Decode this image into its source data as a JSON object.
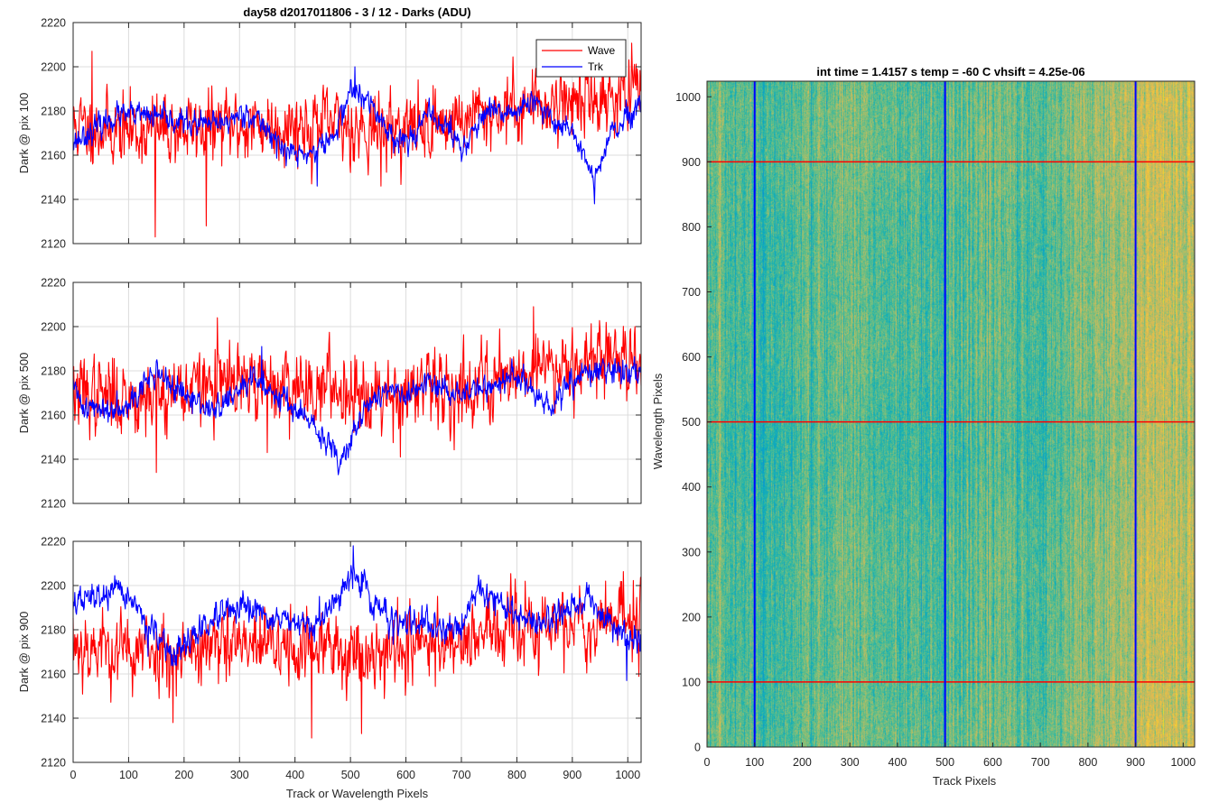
{
  "colors": {
    "wave": "#ff0000",
    "trk": "#0000ff",
    "grid": "#dcdcdc",
    "axis": "#262626"
  },
  "chart_data": [
    {
      "type": "line",
      "title": "day58 d2017011806 - 3 / 12 - Darks (ADU)",
      "ylabel": "Dark @ pix 100",
      "xlabel": "",
      "xlim": [
        0,
        1024
      ],
      "ylim": [
        2120,
        2220
      ],
      "xticks": [
        0,
        100,
        200,
        300,
        400,
        500,
        600,
        700,
        800,
        900,
        1000
      ],
      "yticks": [
        2120,
        2140,
        2160,
        2180,
        2200,
        2220
      ],
      "show_xtick_labels": false,
      "grid": true,
      "legend": {
        "placement": "top-right",
        "entries": [
          "Wave",
          "Trk"
        ]
      },
      "series": [
        {
          "name": "Wave",
          "color": "#ff0000",
          "noise": 7.5,
          "seed": 11,
          "trend": [
            [
              0,
              2173
            ],
            [
              100,
              2171
            ],
            [
              200,
              2172
            ],
            [
              300,
              2173
            ],
            [
              400,
              2174
            ],
            [
              500,
              2173
            ],
            [
              600,
              2172
            ],
            [
              700,
              2176
            ],
            [
              800,
              2182
            ],
            [
              900,
              2185
            ],
            [
              1024,
              2188
            ]
          ],
          "spikes": [
            [
              34,
              2207
            ],
            [
              148,
              2123
            ],
            [
              240,
              2128
            ],
            [
              430,
              2147
            ],
            [
              555,
              2146
            ],
            [
              940,
              2195
            ]
          ]
        },
        {
          "name": "Trk",
          "color": "#0000ff",
          "noise": 2.6,
          "seed": 23,
          "trend": [
            [
              0,
              2166
            ],
            [
              40,
              2172
            ],
            [
              80,
              2178
            ],
            [
              130,
              2178
            ],
            [
              170,
              2176
            ],
            [
              220,
              2174
            ],
            [
              270,
              2174
            ],
            [
              310,
              2180
            ],
            [
              350,
              2172
            ],
            [
              380,
              2162
            ],
            [
              420,
              2160
            ],
            [
              470,
              2168
            ],
            [
              500,
              2190
            ],
            [
              540,
              2182
            ],
            [
              570,
              2170
            ],
            [
              600,
              2166
            ],
            [
              640,
              2178
            ],
            [
              680,
              2172
            ],
            [
              700,
              2162
            ],
            [
              740,
              2178
            ],
            [
              800,
              2180
            ],
            [
              830,
              2184
            ],
            [
              860,
              2176
            ],
            [
              900,
              2172
            ],
            [
              940,
              2148
            ],
            [
              970,
              2170
            ],
            [
              1000,
              2176
            ],
            [
              1024,
              2182
            ]
          ],
          "spikes": [
            [
              940,
              2138
            ],
            [
              508,
              2200
            ],
            [
              440,
              2146
            ]
          ]
        }
      ]
    },
    {
      "type": "line",
      "title": "",
      "ylabel": "Dark @ pix 500",
      "xlabel": "",
      "xlim": [
        0,
        1024
      ],
      "ylim": [
        2120,
        2220
      ],
      "xticks": [
        0,
        100,
        200,
        300,
        400,
        500,
        600,
        700,
        800,
        900,
        1000
      ],
      "yticks": [
        2120,
        2140,
        2160,
        2180,
        2200,
        2220
      ],
      "show_xtick_labels": false,
      "grid": true,
      "series": [
        {
          "name": "Wave",
          "color": "#ff0000",
          "noise": 8,
          "seed": 37,
          "trend": [
            [
              0,
              2170
            ],
            [
              100,
              2168
            ],
            [
              200,
              2172
            ],
            [
              300,
              2174
            ],
            [
              400,
              2173
            ],
            [
              500,
              2172
            ],
            [
              600,
              2170
            ],
            [
              700,
              2172
            ],
            [
              800,
              2180
            ],
            [
              900,
              2185
            ],
            [
              1024,
              2187
            ]
          ],
          "spikes": [
            [
              150,
              2134
            ],
            [
              350,
              2143
            ],
            [
              590,
              2141
            ],
            [
              830,
              2209
            ],
            [
              260,
              2204
            ]
          ]
        },
        {
          "name": "Trk",
          "color": "#0000ff",
          "noise": 2.8,
          "seed": 41,
          "trend": [
            [
              0,
              2172
            ],
            [
              20,
              2164
            ],
            [
              60,
              2162
            ],
            [
              110,
              2168
            ],
            [
              150,
              2180
            ],
            [
              200,
              2168
            ],
            [
              260,
              2162
            ],
            [
              320,
              2176
            ],
            [
              370,
              2170
            ],
            [
              420,
              2158
            ],
            [
              480,
              2140
            ],
            [
              520,
              2160
            ],
            [
              560,
              2172
            ],
            [
              600,
              2168
            ],
            [
              640,
              2174
            ],
            [
              690,
              2170
            ],
            [
              740,
              2172
            ],
            [
              800,
              2178
            ],
            [
              830,
              2170
            ],
            [
              860,
              2162
            ],
            [
              900,
              2176
            ],
            [
              950,
              2180
            ],
            [
              1024,
              2180
            ]
          ],
          "spikes": [
            [
              478,
              2133
            ],
            [
              340,
              2191
            ]
          ]
        }
      ]
    },
    {
      "type": "line",
      "title": "",
      "ylabel": "Dark @ pix 900",
      "xlabel": "Track or Wavelength Pixels",
      "xlim": [
        0,
        1024
      ],
      "ylim": [
        2120,
        2220
      ],
      "xticks": [
        0,
        100,
        200,
        300,
        400,
        500,
        600,
        700,
        800,
        900,
        1000
      ],
      "yticks": [
        2120,
        2140,
        2160,
        2180,
        2200,
        2220
      ],
      "show_xtick_labels": true,
      "grid": true,
      "series": [
        {
          "name": "Wave",
          "color": "#ff0000",
          "noise": 8,
          "seed": 53,
          "trend": [
            [
              0,
              2174
            ],
            [
              100,
              2170
            ],
            [
              200,
              2171
            ],
            [
              300,
              2172
            ],
            [
              400,
              2172
            ],
            [
              500,
              2170
            ],
            [
              600,
              2172
            ],
            [
              700,
              2176
            ],
            [
              800,
              2180
            ],
            [
              900,
              2182
            ],
            [
              1024,
              2186
            ]
          ],
          "spikes": [
            [
              430,
              2131
            ],
            [
              520,
              2133
            ],
            [
              180,
              2138
            ],
            [
              960,
              2202
            ]
          ]
        },
        {
          "name": "Trk",
          "color": "#0000ff",
          "noise": 3,
          "seed": 67,
          "trend": [
            [
              0,
              2192
            ],
            [
              60,
              2196
            ],
            [
              100,
              2196
            ],
            [
              150,
              2176
            ],
            [
              180,
              2168
            ],
            [
              230,
              2180
            ],
            [
              280,
              2188
            ],
            [
              330,
              2188
            ],
            [
              380,
              2184
            ],
            [
              420,
              2180
            ],
            [
              470,
              2190
            ],
            [
              505,
              2208
            ],
            [
              540,
              2192
            ],
            [
              580,
              2184
            ],
            [
              620,
              2182
            ],
            [
              660,
              2180
            ],
            [
              700,
              2182
            ],
            [
              730,
              2200
            ],
            [
              780,
              2190
            ],
            [
              830,
              2182
            ],
            [
              880,
              2188
            ],
            [
              930,
              2194
            ],
            [
              980,
              2180
            ],
            [
              1024,
              2174
            ]
          ],
          "spikes": [
            [
              505,
              2218
            ],
            [
              998,
              2157
            ],
            [
              135,
              2168
            ]
          ]
        }
      ]
    },
    {
      "type": "heatmap",
      "title": "int time = 1.4157 s    temp = -60 C    vhsift = 4.25e-06",
      "xlabel": "Track Pixels",
      "ylabel": "Wavelength Pixels",
      "xlim": [
        0,
        1024
      ],
      "ylim": [
        0,
        1024
      ],
      "xticks": [
        0,
        100,
        200,
        300,
        400,
        500,
        600,
        700,
        800,
        900,
        1000
      ],
      "yticks": [
        0,
        100,
        200,
        300,
        400,
        500,
        600,
        700,
        800,
        900,
        1000
      ],
      "colormap": "parula",
      "vertical_lines": {
        "x": [
          100,
          500,
          900
        ],
        "color": "#0000ff"
      },
      "horizontal_lines": {
        "y": [
          100,
          500,
          900
        ],
        "color": "#ff0000"
      },
      "brightness_profile": [
        [
          0,
          0.5
        ],
        [
          60,
          0.46
        ],
        [
          120,
          0.44
        ],
        [
          200,
          0.48
        ],
        [
          260,
          0.5
        ],
        [
          300,
          0.55
        ],
        [
          350,
          0.5
        ],
        [
          420,
          0.47
        ],
        [
          500,
          0.46
        ],
        [
          540,
          0.48
        ],
        [
          580,
          0.52
        ],
        [
          640,
          0.5
        ],
        [
          700,
          0.48
        ],
        [
          760,
          0.53
        ],
        [
          820,
          0.56
        ],
        [
          860,
          0.58
        ],
        [
          880,
          0.62
        ],
        [
          920,
          0.66
        ],
        [
          1000,
          0.65
        ],
        [
          1024,
          0.64
        ]
      ]
    }
  ]
}
